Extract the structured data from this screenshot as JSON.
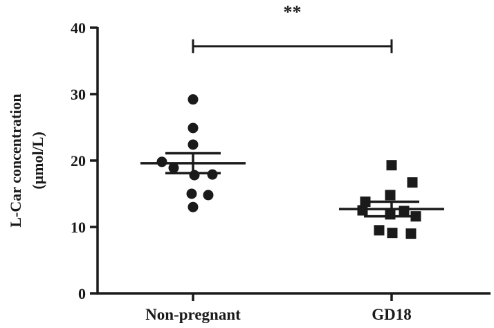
{
  "chart_data": {
    "type": "scatter",
    "plot_style": "dot plot with mean ± SEM",
    "categories": [
      "Non-pregnant",
      "GD18"
    ],
    "ylabel_line1": "L-Car concentration",
    "ylabel_line2": "(μmol/L)",
    "ylim": [
      0,
      40
    ],
    "yticks": [
      0,
      10,
      20,
      30,
      40
    ],
    "ytick_labels": [
      "0",
      "10",
      "20",
      "30",
      "40"
    ],
    "grid": false,
    "legend": "none",
    "colors": {
      "points": "#1a1a1a",
      "axes": "#1a1a1a"
    },
    "series": [
      {
        "category": "Non-pregnant",
        "marker": "circle",
        "points": [
          29.2,
          24.9,
          22.4,
          19.8,
          18.9,
          17.8,
          17.9,
          15.0,
          14.8,
          13.0
        ],
        "mean": 19.6,
        "sem_low": 18.1,
        "sem_high": 21.1
      },
      {
        "category": "GD18",
        "marker": "square",
        "points": [
          19.3,
          16.7,
          14.8,
          13.8,
          12.5,
          12.4,
          11.9,
          11.6,
          9.5,
          9.1,
          9.0
        ],
        "mean": 12.7,
        "sem_low": 11.6,
        "sem_high": 13.8
      }
    ],
    "significance": {
      "label": "**",
      "between": [
        "Non-pregnant",
        "GD18"
      ],
      "y": 37.2
    }
  }
}
